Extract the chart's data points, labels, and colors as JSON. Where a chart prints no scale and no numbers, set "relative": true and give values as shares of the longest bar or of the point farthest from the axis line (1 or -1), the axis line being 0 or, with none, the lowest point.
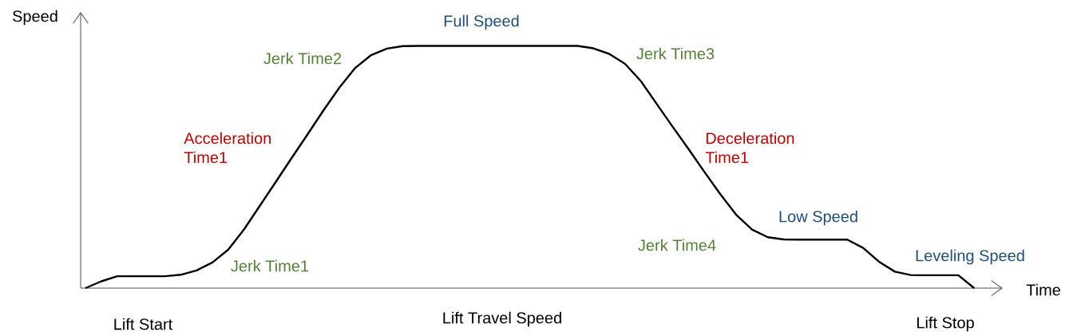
{
  "chart_data": {
    "type": "line",
    "relative": true,
    "title": "Lift Travel Speed",
    "xlabel": "Time",
    "ylabel": "Speed",
    "color": "#000000",
    "categories": [
      null,
      null,
      null,
      null,
      null,
      null,
      null,
      null,
      null,
      null,
      null,
      null,
      null,
      null,
      null,
      null,
      null,
      null,
      null,
      null,
      null,
      null,
      null,
      null,
      null,
      null,
      null,
      null,
      null,
      null,
      null,
      null,
      null,
      null,
      null,
      null,
      null,
      null,
      null,
      null,
      null,
      null,
      null,
      null,
      null,
      null,
      null,
      null,
      null,
      null,
      null,
      null,
      null,
      null,
      null,
      null,
      null
    ],
    "values": [
      0,
      0.028,
      0.049,
      0.049,
      0.049,
      0.049,
      0.055,
      0.073,
      0.106,
      0.159,
      0.243,
      0.341,
      0.439,
      0.538,
      0.635,
      0.734,
      0.828,
      0.909,
      0.962,
      0.989,
      0.999,
      1,
      1,
      1,
      1,
      1,
      1,
      1,
      1,
      1,
      1,
      1,
      0.99,
      0.967,
      0.926,
      0.854,
      0.76,
      0.666,
      0.574,
      0.48,
      0.388,
      0.303,
      0.242,
      0.21,
      0.201,
      0.2,
      0.2,
      0.2,
      0.2,
      0.166,
      0.109,
      0.068,
      0.054,
      0.053,
      0.053,
      0.053,
      0
    ],
    "annotations": [
      "Full Speed",
      "Jerk Time2",
      "Acceleration Time1",
      "Jerk Time1",
      "Jerk Time3",
      "Deceleration Time1",
      "Jerk Time4",
      "Low Speed",
      "Leveling Speed",
      "Lift Start",
      "Lift Stop"
    ]
  }
}
